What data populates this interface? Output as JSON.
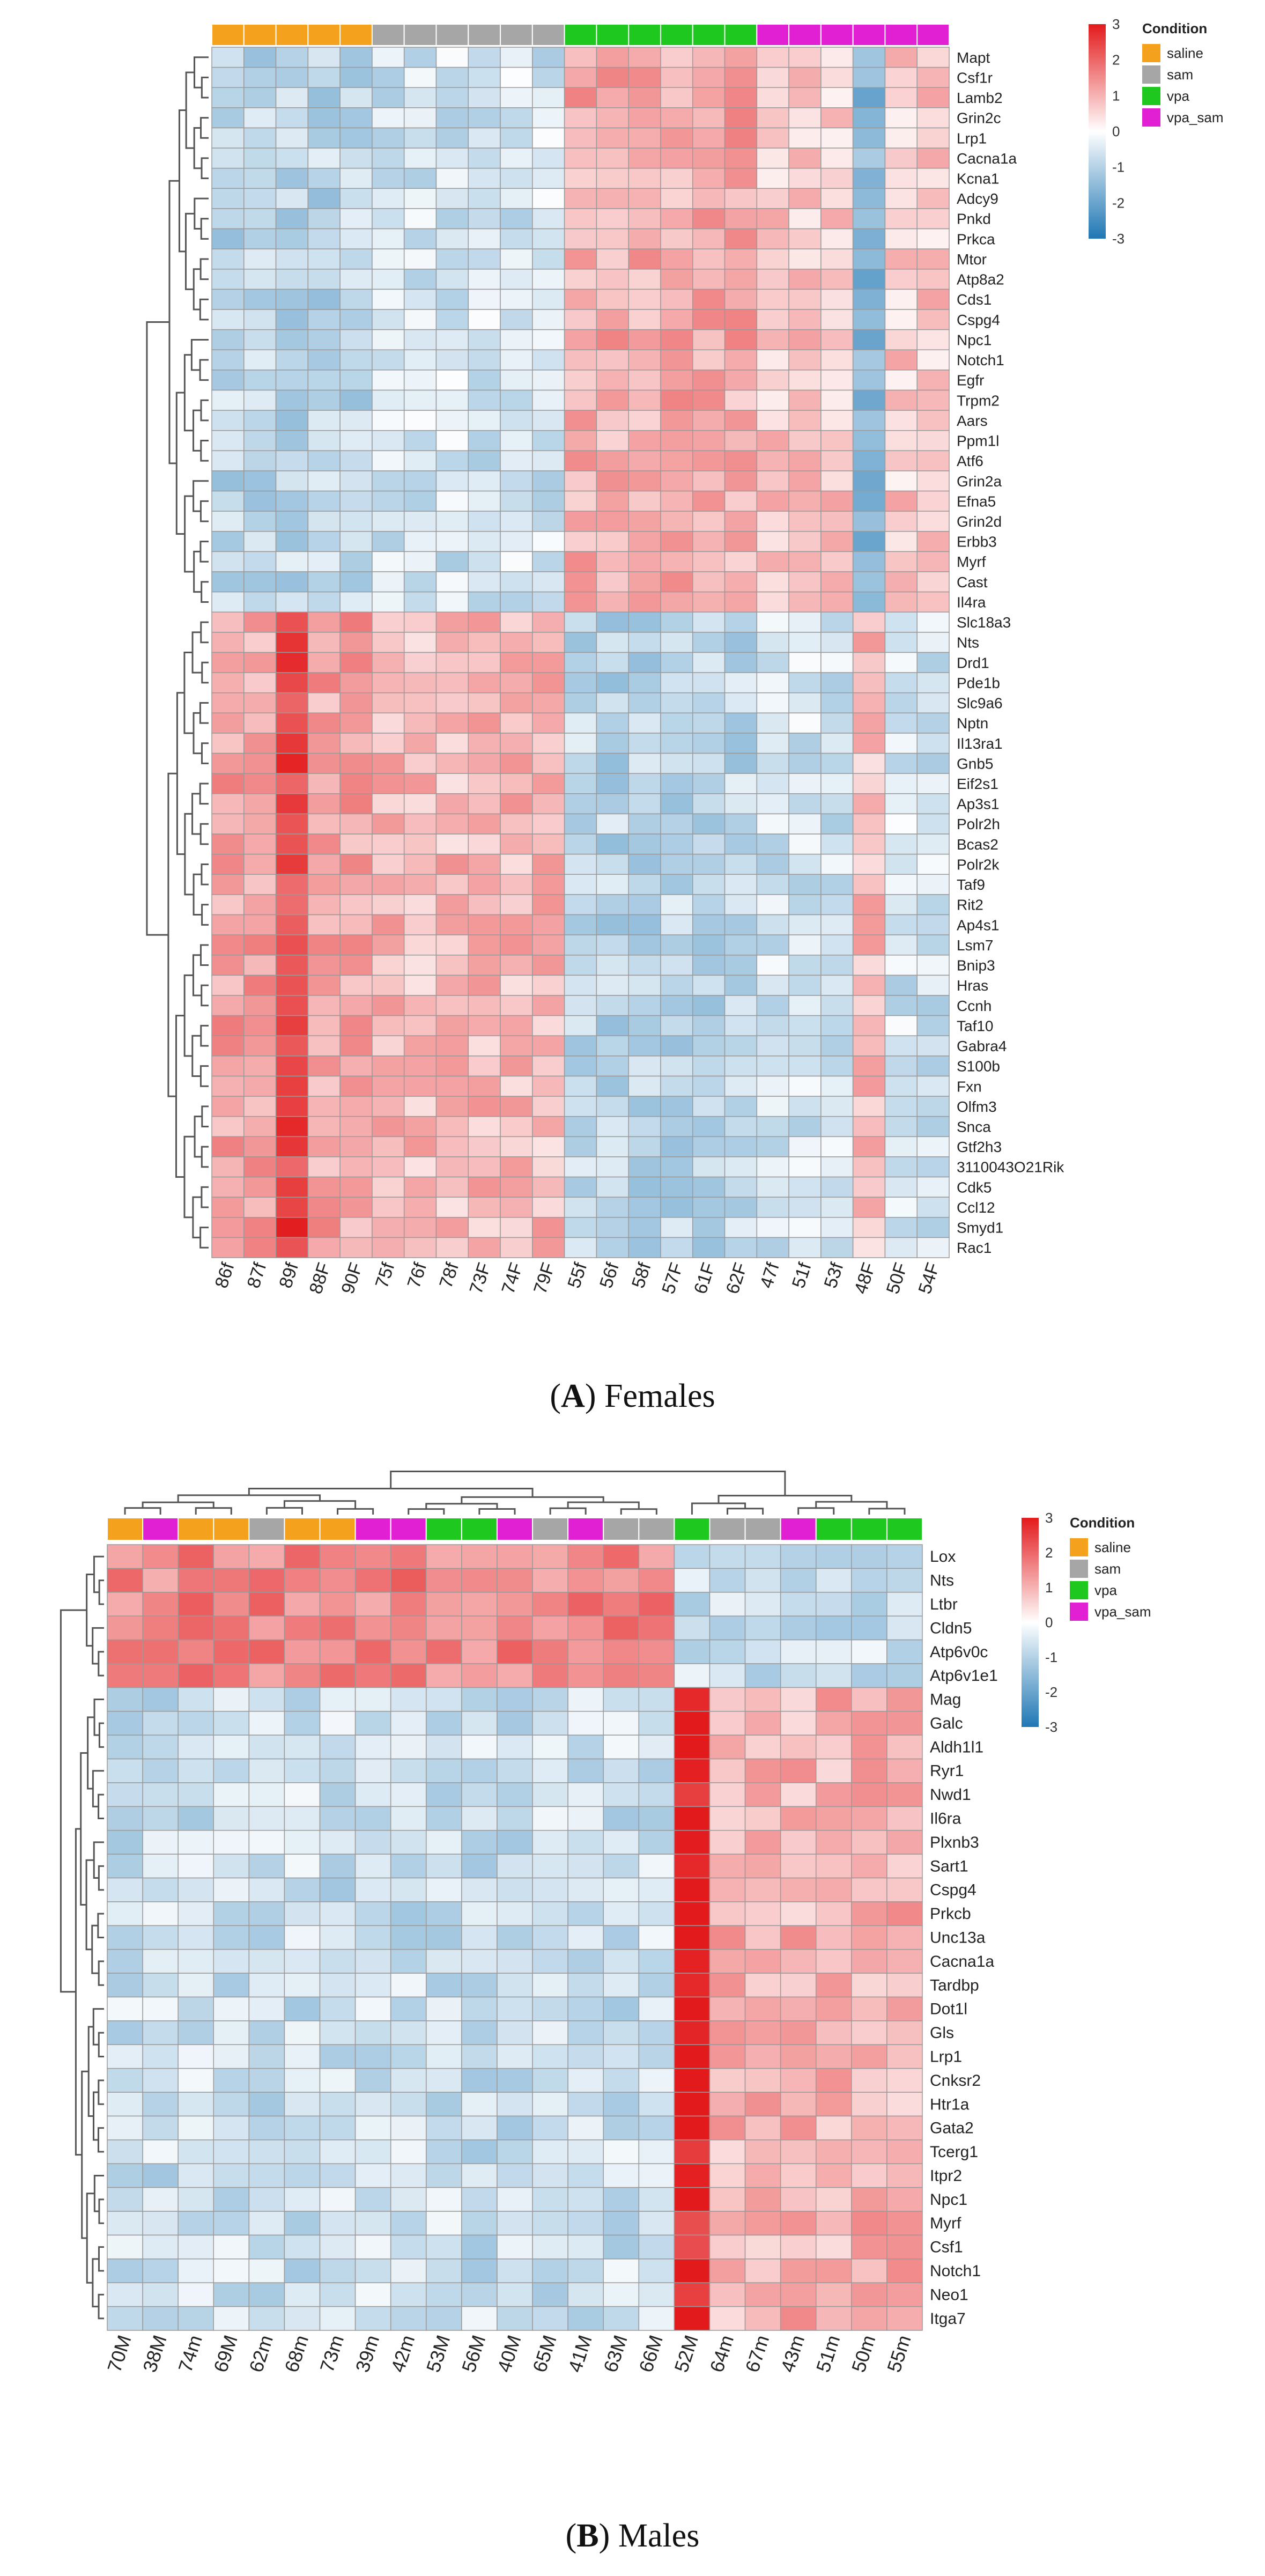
{
  "panels": [
    {
      "id": "A",
      "panel_letter": "A",
      "caption": "Females",
      "legend_title": "Condition",
      "genes": [
        "Mapt",
        "Csf1r",
        "Lamb2",
        "Grin2c",
        "Lrp1",
        "Cacna1a",
        "Kcna1",
        "Adcy9",
        "Pnkd",
        "Prkca",
        "Mtor",
        "Atp8a2",
        "Cds1",
        "Cspg4",
        "Npc1",
        "Notch1",
        "Egfr",
        "Trpm2",
        "Aars",
        "Ppm1l",
        "Atf6",
        "Grin2a",
        "Efna5",
        "Grin2d",
        "Erbb3",
        "Myrf",
        "Cast",
        "Il4ra",
        "Slc18a3",
        "Nts",
        "Drd1",
        "Pde1b",
        "Slc9a6",
        "Nptn",
        "Il13ra1",
        "Gnb5",
        "Eif2s1",
        "Ap3s1",
        "Polr2h",
        "Bcas2",
        "Polr2k",
        "Taf9",
        "Rit2",
        "Ap4s1",
        "Lsm7",
        "Bnip3",
        "Hras",
        "Ccnh",
        "Taf10",
        "Gabra4",
        "S100b",
        "Fxn",
        "Olfm3",
        "Snca",
        "Gtf2h3",
        "3110043O21Rik",
        "Cdk5",
        "Ccl12",
        "Smyd1",
        "Rac1"
      ],
      "samples": [
        "86f",
        "87f",
        "89f",
        "88F",
        "90F",
        "75f",
        "76f",
        "78f",
        "73F",
        "74F",
        "79F",
        "55f",
        "56f",
        "58f",
        "57F",
        "61F",
        "62F",
        "47f",
        "51f",
        "53f",
        "48F",
        "50F",
        "54F"
      ]
    },
    {
      "id": "B",
      "panel_letter": "B",
      "caption": "Males",
      "legend_title": "Condition",
      "genes": [
        "Lox",
        "Nts",
        "Ltbr",
        "Cldn5",
        "Atp6v0c",
        "Atp6v1e1",
        "Mag",
        "Galc",
        "Aldh1l1",
        "Ryr1",
        "Nwd1",
        "Il6ra",
        "Plxnb3",
        "Sart1",
        "Cspg4",
        "Prkcb",
        "Unc13a",
        "Cacna1a",
        "Tardbp",
        "Dot1l",
        "Gls",
        "Lrp1",
        "Cnksr2",
        "Htr1a",
        "Gata2",
        "Tcerg1",
        "Itpr2",
        "Npc1",
        "Myrf",
        "Csf1",
        "Notch1",
        "Neo1",
        "Itga7"
      ],
      "samples": [
        "70M",
        "38M",
        "74m",
        "69M",
        "62m",
        "68m",
        "73m",
        "39m",
        "42m",
        "53M",
        "56M",
        "40M",
        "65M",
        "41M",
        "63M",
        "66M",
        "52M",
        "64m",
        "67m",
        "43m",
        "51m",
        "50m",
        "55m"
      ]
    }
  ],
  "chart_data": [
    {
      "type": "heatmap",
      "title": "(A) Females",
      "rows": [
        "Mapt",
        "Csf1r",
        "Lamb2",
        "Grin2c",
        "Lrp1",
        "Cacna1a",
        "Kcna1",
        "Adcy9",
        "Pnkd",
        "Prkca",
        "Mtor",
        "Atp8a2",
        "Cds1",
        "Cspg4",
        "Npc1",
        "Notch1",
        "Egfr",
        "Trpm2",
        "Aars",
        "Ppm1l",
        "Atf6",
        "Grin2a",
        "Efna5",
        "Grin2d",
        "Erbb3",
        "Myrf",
        "Cast",
        "Il4ra",
        "Slc18a3",
        "Nts",
        "Drd1",
        "Pde1b",
        "Slc9a6",
        "Nptn",
        "Il13ra1",
        "Gnb5",
        "Eif2s1",
        "Ap3s1",
        "Polr2h",
        "Bcas2",
        "Polr2k",
        "Taf9",
        "Rit2",
        "Ap4s1",
        "Lsm7",
        "Bnip3",
        "Hras",
        "Ccnh",
        "Taf10",
        "Gabra4",
        "S100b",
        "Fxn",
        "Olfm3",
        "Snca",
        "Gtf2h3",
        "3110043O21Rik",
        "Cdk5",
        "Ccl12",
        "Smyd1",
        "Rac1"
      ],
      "columns": [
        "86f",
        "87f",
        "89f",
        "88F",
        "90F",
        "75f",
        "76f",
        "78f",
        "73F",
        "74F",
        "79F",
        "55f",
        "56f",
        "58f",
        "57F",
        "61F",
        "62F",
        "47f",
        "51f",
        "53f",
        "48F",
        "50F",
        "54F"
      ],
      "column_conditions": [
        "saline",
        "saline",
        "saline",
        "saline",
        "saline",
        "sam",
        "sam",
        "sam",
        "sam",
        "sam",
        "sam",
        "vpa",
        "vpa",
        "vpa",
        "vpa",
        "vpa",
        "vpa",
        "vpa_sam",
        "vpa_sam",
        "vpa_sam",
        "vpa_sam",
        "vpa_sam",
        "vpa_sam"
      ],
      "row_groups": [
        28,
        32
      ],
      "legend": {
        "title": "Condition",
        "entries": [
          {
            "label": "saline",
            "color": "#f4a11d"
          },
          {
            "label": "sam",
            "color": "#a6a6a6"
          },
          {
            "label": "vpa",
            "color": "#1ec81e"
          },
          {
            "label": "vpa_sam",
            "color": "#e020d2"
          }
        ]
      },
      "colorbar": {
        "range": [
          -3,
          3
        ],
        "ticks": [
          -3,
          -2,
          -1,
          0,
          1,
          2,
          3
        ],
        "low_color": "#1f77b4",
        "mid_color": "#ffffff",
        "high_color": "#e31a1c"
      },
      "value_pattern": {
        "group1_by_condition": {
          "saline": -0.9,
          "sam": -0.6,
          "vpa": 1.1,
          "vpa_sam": 0.7
        },
        "group2_by_condition": {
          "saline": 1.2,
          "sam": 0.9,
          "vpa": -0.9,
          "vpa_sam": -0.6
        },
        "outliers": [
          {
            "column": "89f",
            "group": 2,
            "value": 2.4
          },
          {
            "column": "48F",
            "group": 1,
            "value": -1.6
          },
          {
            "column": "48F",
            "group": 2,
            "value": 0.9
          }
        ]
      }
    },
    {
      "type": "heatmap",
      "title": "(B) Males",
      "rows": [
        "Lox",
        "Nts",
        "Ltbr",
        "Cldn5",
        "Atp6v0c",
        "Atp6v1e1",
        "Mag",
        "Galc",
        "Aldh1l1",
        "Ryr1",
        "Nwd1",
        "Il6ra",
        "Plxnb3",
        "Sart1",
        "Cspg4",
        "Prkcb",
        "Unc13a",
        "Cacna1a",
        "Tardbp",
        "Dot1l",
        "Gls",
        "Lrp1",
        "Cnksr2",
        "Htr1a",
        "Gata2",
        "Tcerg1",
        "Itpr2",
        "Npc1",
        "Myrf",
        "Csf1",
        "Notch1",
        "Neo1",
        "Itga7"
      ],
      "columns": [
        "70M",
        "38M",
        "74m",
        "69M",
        "62m",
        "68m",
        "73m",
        "39m",
        "42m",
        "53M",
        "56M",
        "40M",
        "65M",
        "41M",
        "63M",
        "66M",
        "52M",
        "64m",
        "67m",
        "43m",
        "51m",
        "50m",
        "55m"
      ],
      "column_conditions": [
        "saline",
        "vpa_sam",
        "saline",
        "saline",
        "sam",
        "saline",
        "saline",
        "vpa_sam",
        "vpa_sam",
        "vpa",
        "vpa",
        "vpa_sam",
        "sam",
        "vpa_sam",
        "sam",
        "sam",
        "vpa",
        "sam",
        "sam",
        "vpa_sam",
        "vpa",
        "vpa",
        "vpa"
      ],
      "row_groups": [
        6,
        27
      ],
      "legend": {
        "title": "Condition",
        "entries": [
          {
            "label": "saline",
            "color": "#f4a11d"
          },
          {
            "label": "sam",
            "color": "#a6a6a6"
          },
          {
            "label": "vpa",
            "color": "#1ec81e"
          },
          {
            "label": "vpa_sam",
            "color": "#e020d2"
          }
        ]
      },
      "colorbar": {
        "range": [
          -3,
          3
        ],
        "ticks": [
          -3,
          -2,
          -1,
          0,
          1,
          2,
          3
        ],
        "low_color": "#1f77b4",
        "mid_color": "#ffffff",
        "high_color": "#e31a1c"
      },
      "value_pattern": {
        "group1_left_columns_value": 1.6,
        "group1_right_columns_value": -0.7,
        "group2_left_columns_value": -0.7,
        "group2_right_columns_value": 1.0,
        "outliers": [
          {
            "column": "52M",
            "group": 2,
            "value": 2.8
          }
        ]
      }
    }
  ]
}
